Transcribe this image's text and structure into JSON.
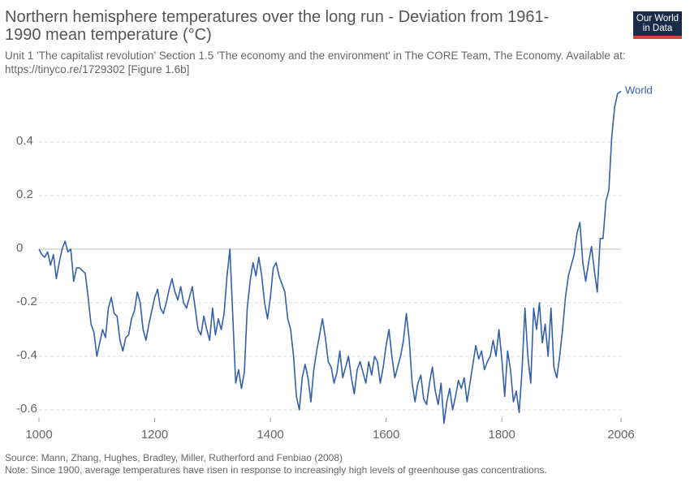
{
  "chart_data": {
    "type": "line",
    "title": "Northern hemisphere temperatures over the long run - Deviation from 1961-1990 mean temperature (°C)",
    "subtitle": "Unit 1 'The capitalist revolution’ Section 1.5 'The economy and the environment' in The CORE Team, The Economy. Available at: https://tinyco.re/1729302 [Figure 1.6b]",
    "logo": [
      "Our World",
      "in Data"
    ],
    "source": "Source: Mann, Zhang, Hughes, Bradley, Miller, Rutherford and Fenbiao (2008)",
    "note": "Note: Since 1900, average temperatures have risen in response to increasingly high levels of greenhouse gas concentrations.",
    "xlim": [
      1000,
      2006
    ],
    "xticks": [
      1000,
      1200,
      1400,
      1600,
      1800,
      2006
    ],
    "ylim": [
      -0.63,
      0.62
    ],
    "yticks": [
      -0.6,
      -0.4,
      -0.2,
      0,
      0.2,
      0.4
    ],
    "grid": true,
    "x": [
      1000,
      1005,
      1010,
      1015,
      1020,
      1025,
      1030,
      1035,
      1040,
      1045,
      1050,
      1055,
      1060,
      1065,
      1070,
      1075,
      1080,
      1085,
      1090,
      1095,
      1100,
      1105,
      1110,
      1115,
      1120,
      1125,
      1130,
      1135,
      1140,
      1145,
      1150,
      1155,
      1160,
      1165,
      1170,
      1175,
      1180,
      1185,
      1190,
      1195,
      1200,
      1205,
      1210,
      1215,
      1220,
      1225,
      1230,
      1235,
      1240,
      1245,
      1250,
      1255,
      1260,
      1265,
      1270,
      1275,
      1280,
      1285,
      1290,
      1295,
      1300,
      1305,
      1310,
      1315,
      1320,
      1325,
      1330,
      1335,
      1340,
      1345,
      1350,
      1355,
      1360,
      1365,
      1370,
      1375,
      1380,
      1385,
      1390,
      1395,
      1400,
      1405,
      1410,
      1415,
      1420,
      1425,
      1430,
      1435,
      1440,
      1445,
      1450,
      1455,
      1460,
      1465,
      1470,
      1475,
      1480,
      1485,
      1490,
      1495,
      1500,
      1505,
      1510,
      1515,
      1520,
      1525,
      1530,
      1535,
      1540,
      1545,
      1550,
      1555,
      1560,
      1565,
      1570,
      1575,
      1580,
      1585,
      1590,
      1595,
      1600,
      1605,
      1610,
      1615,
      1620,
      1625,
      1630,
      1635,
      1640,
      1645,
      1650,
      1655,
      1660,
      1665,
      1670,
      1675,
      1680,
      1685,
      1690,
      1695,
      1700,
      1705,
      1710,
      1715,
      1720,
      1725,
      1730,
      1735,
      1740,
      1745,
      1750,
      1755,
      1760,
      1765,
      1770,
      1775,
      1780,
      1785,
      1790,
      1795,
      1800,
      1805,
      1810,
      1815,
      1820,
      1825,
      1830,
      1835,
      1840,
      1845,
      1850,
      1855,
      1860,
      1865,
      1870,
      1875,
      1880,
      1885,
      1890,
      1895,
      1900,
      1905,
      1910,
      1915,
      1920,
      1925,
      1930,
      1935,
      1940,
      1945,
      1950,
      1955,
      1960,
      1965,
      1970,
      1975,
      1980,
      1985,
      1990,
      1995,
      2000,
      2006
    ],
    "series": [
      {
        "name": "World",
        "color": "#3360a9",
        "values": [
          0.0,
          -0.02,
          -0.03,
          -0.01,
          -0.06,
          -0.02,
          -0.11,
          -0.05,
          0.0,
          0.03,
          -0.01,
          0.0,
          -0.12,
          -0.07,
          -0.07,
          -0.08,
          -0.09,
          -0.18,
          -0.28,
          -0.31,
          -0.4,
          -0.35,
          -0.3,
          -0.33,
          -0.22,
          -0.18,
          -0.24,
          -0.25,
          -0.34,
          -0.38,
          -0.33,
          -0.32,
          -0.26,
          -0.23,
          -0.16,
          -0.2,
          -0.3,
          -0.34,
          -0.28,
          -0.23,
          -0.18,
          -0.15,
          -0.22,
          -0.24,
          -0.2,
          -0.15,
          -0.11,
          -0.16,
          -0.19,
          -0.14,
          -0.2,
          -0.22,
          -0.18,
          -0.14,
          -0.22,
          -0.3,
          -0.32,
          -0.25,
          -0.3,
          -0.34,
          -0.22,
          -0.32,
          -0.26,
          -0.3,
          -0.24,
          -0.1,
          0.0,
          -0.25,
          -0.5,
          -0.45,
          -0.52,
          -0.46,
          -0.22,
          -0.12,
          -0.05,
          -0.1,
          -0.03,
          -0.1,
          -0.2,
          -0.26,
          -0.18,
          -0.07,
          -0.05,
          -0.1,
          -0.13,
          -0.16,
          -0.26,
          -0.3,
          -0.4,
          -0.55,
          -0.6,
          -0.48,
          -0.43,
          -0.48,
          -0.57,
          -0.45,
          -0.38,
          -0.32,
          -0.26,
          -0.33,
          -0.42,
          -0.44,
          -0.5,
          -0.46,
          -0.38,
          -0.48,
          -0.44,
          -0.4,
          -0.48,
          -0.54,
          -0.45,
          -0.42,
          -0.46,
          -0.5,
          -0.42,
          -0.47,
          -0.4,
          -0.42,
          -0.5,
          -0.44,
          -0.36,
          -0.3,
          -0.4,
          -0.48,
          -0.44,
          -0.4,
          -0.34,
          -0.24,
          -0.34,
          -0.5,
          -0.57,
          -0.5,
          -0.47,
          -0.56,
          -0.58,
          -0.5,
          -0.44,
          -0.53,
          -0.58,
          -0.5,
          -0.65,
          -0.57,
          -0.52,
          -0.6,
          -0.55,
          -0.49,
          -0.52,
          -0.48,
          -0.57,
          -0.5,
          -0.43,
          -0.36,
          -0.41,
          -0.38,
          -0.45,
          -0.42,
          -0.4,
          -0.34,
          -0.4,
          -0.3,
          -0.41,
          -0.55,
          -0.38,
          -0.45,
          -0.57,
          -0.53,
          -0.61,
          -0.45,
          -0.22,
          -0.4,
          -0.5,
          -0.22,
          -0.3,
          -0.2,
          -0.35,
          -0.28,
          -0.4,
          -0.22,
          -0.44,
          -0.48,
          -0.4,
          -0.3,
          -0.18,
          -0.1,
          -0.06,
          -0.02,
          0.06,
          0.1,
          -0.05,
          -0.12,
          -0.05,
          0.01,
          -0.08,
          -0.16,
          0.04,
          0.04,
          0.18,
          0.22,
          0.42,
          0.53,
          0.58,
          0.59
        ]
      }
    ]
  }
}
